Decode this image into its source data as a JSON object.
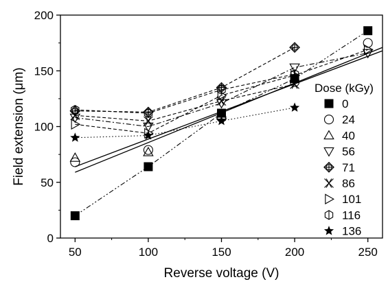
{
  "chart_data": {
    "type": "scatter",
    "xlabel": "Reverse voltage (V)",
    "ylabel": "Field extension (μm)",
    "xlim": [
      40,
      260
    ],
    "ylim": [
      0,
      200
    ],
    "xticks": [
      50,
      100,
      150,
      200,
      250
    ],
    "yticks": [
      0,
      50,
      100,
      150,
      200
    ],
    "x_tick_labels": [
      "50",
      "100",
      "150",
      "200",
      "250"
    ],
    "y_tick_labels": [
      "0",
      "50",
      "100",
      "150",
      "200"
    ],
    "grid": false,
    "legend": {
      "title": "Dose (kGy)",
      "placement": "right"
    },
    "series": [
      {
        "name": "0",
        "marker": "filled-square",
        "line": "dashdotdot",
        "x": [
          50,
          100,
          150,
          200,
          250
        ],
        "y": [
          20,
          64,
          112,
          143,
          186
        ]
      },
      {
        "name": "24",
        "marker": "circle",
        "line": "solid",
        "x": [
          50,
          100,
          150,
          200,
          250
        ],
        "y": [
          68,
          79,
          108,
          140,
          175
        ]
      },
      {
        "name": "40",
        "marker": "triangle-up",
        "line": "solid",
        "x": [
          50,
          100,
          150,
          200
        ],
        "y": [
          72,
          77,
          110,
          144
        ]
      },
      {
        "name": "56",
        "marker": "triangle-down",
        "line": "dashdot",
        "x": [
          50,
          100,
          150,
          200,
          250
        ],
        "y": [
          108,
          100,
          121,
          153,
          166
        ]
      },
      {
        "name": "71",
        "marker": "circle-plus",
        "line": "dashed",
        "x": [
          50,
          100,
          150,
          200
        ],
        "y": [
          114,
          113,
          135,
          171
        ]
      },
      {
        "name": "86",
        "marker": "double-x",
        "line": "dashed",
        "x": [
          50,
          100,
          150,
          200
        ],
        "y": [
          110,
          105,
          123,
          138
        ]
      },
      {
        "name": "101",
        "marker": "triangle-right",
        "line": "dashed",
        "x": [
          50,
          100,
          150,
          200,
          250
        ],
        "y": [
          102,
          94,
          128,
          146,
          169
        ]
      },
      {
        "name": "116",
        "marker": "hexagon",
        "line": "dashed",
        "x": [
          50,
          100,
          150,
          200
        ],
        "y": [
          115,
          112,
          133,
          147
        ]
      },
      {
        "name": "136",
        "marker": "star",
        "line": "dotted",
        "x": [
          50,
          100,
          150,
          200
        ],
        "y": [
          90,
          92,
          105,
          117
        ]
      }
    ],
    "fit_lines": [
      {
        "x": [
          50,
          260
        ],
        "y": [
          59,
          171
        ]
      },
      {
        "x": [
          50,
          260
        ],
        "y": [
          64,
          168
        ]
      }
    ]
  }
}
